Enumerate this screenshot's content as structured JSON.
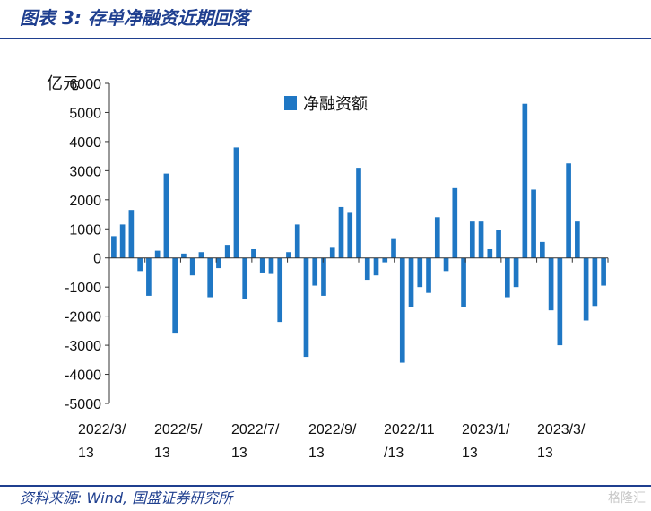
{
  "figure": {
    "title": "图表 3:  存单净融资近期回落",
    "source": "资料来源:  Wind,  国盛证券研究所",
    "watermark": "格隆汇"
  },
  "chart_data": {
    "type": "bar",
    "unit": "亿元",
    "legend": "净融资额",
    "legend_position": "top-center",
    "bar_color": "#1f77c4",
    "ylim": [
      -5000,
      6000
    ],
    "yticks": [
      -5000,
      -4000,
      -3000,
      -2000,
      -1000,
      0,
      1000,
      2000,
      3000,
      4000,
      5000,
      6000
    ],
    "xtick_labels": [
      [
        "2022/3/",
        "13"
      ],
      [
        "2022/5/",
        "13"
      ],
      [
        "2022/7/",
        "13"
      ],
      [
        "2022/9/",
        "13"
      ],
      [
        "2022/11",
        "/13"
      ],
      [
        "2023/1/",
        "13"
      ],
      [
        "2023/3/",
        "13"
      ]
    ],
    "values": [
      750,
      1150,
      1650,
      -450,
      -1300,
      250,
      2900,
      -2600,
      150,
      -600,
      200,
      -1350,
      -350,
      450,
      3800,
      -1400,
      300,
      -500,
      -550,
      -2200,
      200,
      1150,
      -3400,
      -950,
      -1300,
      350,
      1750,
      1550,
      3100,
      -750,
      -600,
      -150,
      650,
      -3600,
      -1700,
      -1000,
      -1200,
      1400,
      -450,
      2400,
      -1700,
      1250,
      1250,
      300,
      950,
      -1350,
      -1000,
      5300,
      2350,
      550,
      -1800,
      -3000,
      3250,
      1250,
      -2150,
      -1650,
      -950
    ]
  }
}
